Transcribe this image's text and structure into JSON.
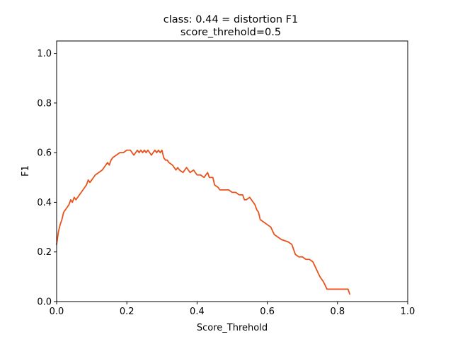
{
  "chart_data": {
    "type": "line",
    "title": "class: 0.44 = distortion F1",
    "subtitle": "score_threhold=0.5",
    "xlabel": "Score_Threhold",
    "ylabel": "F1",
    "xlim": [
      0.0,
      1.0
    ],
    "ylim": [
      0.0,
      1.05
    ],
    "xticks": [
      "0.0",
      "0.2",
      "0.4",
      "0.6",
      "0.8",
      "1.0"
    ],
    "yticks": [
      "0.0",
      "0.2",
      "0.4",
      "0.6",
      "0.8",
      "1.0"
    ],
    "grid": false,
    "legend": "none",
    "series": [
      {
        "color": "#e8531c",
        "x": [
          0.0,
          0.005,
          0.01,
          0.015,
          0.02,
          0.025,
          0.03,
          0.035,
          0.04,
          0.045,
          0.05,
          0.055,
          0.06,
          0.065,
          0.07,
          0.075,
          0.08,
          0.085,
          0.09,
          0.095,
          0.1,
          0.105,
          0.11,
          0.12,
          0.13,
          0.14,
          0.145,
          0.15,
          0.155,
          0.16,
          0.17,
          0.18,
          0.19,
          0.2,
          0.205,
          0.21,
          0.22,
          0.225,
          0.23,
          0.235,
          0.24,
          0.245,
          0.25,
          0.255,
          0.26,
          0.265,
          0.27,
          0.28,
          0.285,
          0.29,
          0.295,
          0.3,
          0.305,
          0.31,
          0.315,
          0.32,
          0.33,
          0.34,
          0.345,
          0.35,
          0.36,
          0.37,
          0.38,
          0.39,
          0.4,
          0.41,
          0.42,
          0.425,
          0.43,
          0.435,
          0.44,
          0.445,
          0.45,
          0.46,
          0.465,
          0.47,
          0.48,
          0.49,
          0.5,
          0.51,
          0.52,
          0.53,
          0.535,
          0.54,
          0.55,
          0.56,
          0.565,
          0.57,
          0.575,
          0.58,
          0.59,
          0.6,
          0.61,
          0.62,
          0.63,
          0.64,
          0.66,
          0.67,
          0.68,
          0.69,
          0.7,
          0.71,
          0.72,
          0.73,
          0.74,
          0.75,
          0.76,
          0.77,
          0.78,
          0.79,
          0.8,
          0.81,
          0.82,
          0.83,
          0.835
        ],
        "y": [
          0.23,
          0.28,
          0.31,
          0.33,
          0.36,
          0.37,
          0.38,
          0.39,
          0.41,
          0.4,
          0.42,
          0.41,
          0.42,
          0.43,
          0.44,
          0.45,
          0.46,
          0.47,
          0.49,
          0.48,
          0.49,
          0.5,
          0.51,
          0.52,
          0.53,
          0.55,
          0.56,
          0.55,
          0.57,
          0.58,
          0.59,
          0.6,
          0.6,
          0.61,
          0.61,
          0.61,
          0.59,
          0.6,
          0.61,
          0.6,
          0.61,
          0.6,
          0.61,
          0.6,
          0.61,
          0.6,
          0.59,
          0.61,
          0.6,
          0.61,
          0.6,
          0.61,
          0.58,
          0.57,
          0.57,
          0.56,
          0.55,
          0.53,
          0.54,
          0.53,
          0.52,
          0.54,
          0.52,
          0.53,
          0.51,
          0.51,
          0.5,
          0.51,
          0.52,
          0.5,
          0.5,
          0.5,
          0.47,
          0.46,
          0.45,
          0.45,
          0.45,
          0.45,
          0.44,
          0.44,
          0.43,
          0.43,
          0.41,
          0.41,
          0.42,
          0.4,
          0.39,
          0.37,
          0.36,
          0.33,
          0.32,
          0.31,
          0.3,
          0.27,
          0.26,
          0.25,
          0.24,
          0.23,
          0.19,
          0.18,
          0.18,
          0.17,
          0.17,
          0.16,
          0.13,
          0.1,
          0.08,
          0.05,
          0.05,
          0.05,
          0.05,
          0.05,
          0.05,
          0.05,
          0.03
        ]
      }
    ]
  }
}
